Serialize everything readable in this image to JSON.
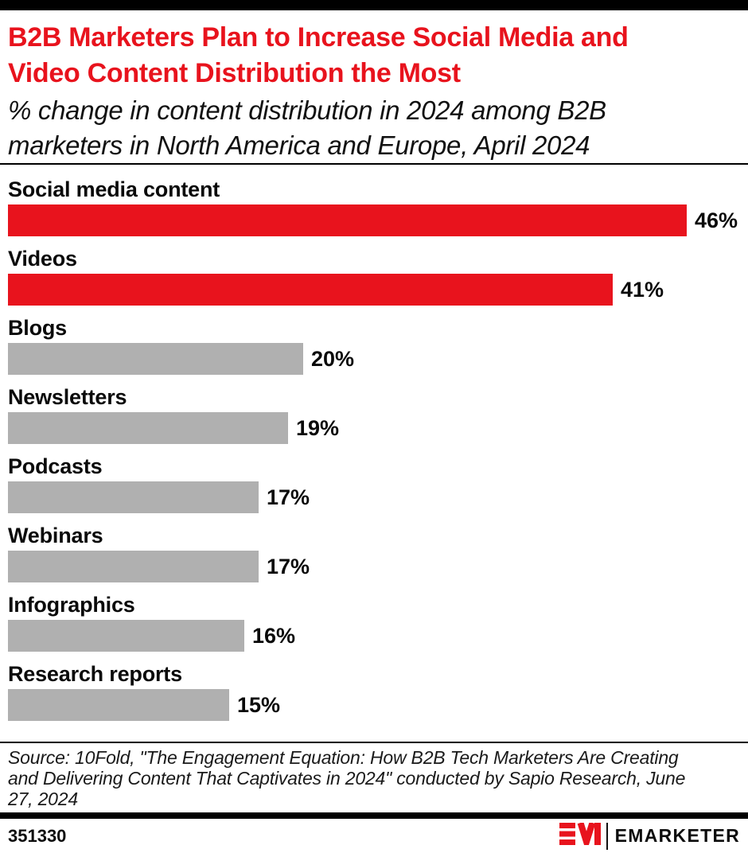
{
  "header": {
    "title_lines": [
      "B2B Marketers Plan to Increase Social Media and",
      "Video Content Distribution the Most"
    ],
    "subtitle_lines": [
      "% change in content distribution in 2024 among B2B",
      "marketers in North America and Europe, April 2024"
    ]
  },
  "chart_data": {
    "type": "bar",
    "orientation": "horizontal",
    "title": "B2B Marketers Plan to Increase Social Media and Video Content Distribution the Most",
    "subtitle": "% change in content distribution in 2024 among B2B marketers in North America and Europe, April 2024",
    "categories": [
      "Social media content",
      "Videos",
      "Blogs",
      "Newsletters",
      "Podcasts",
      "Webinars",
      "Infographics",
      "Research reports"
    ],
    "values": [
      46,
      41,
      20,
      19,
      17,
      17,
      16,
      15
    ],
    "value_labels": [
      "46%",
      "41%",
      "20%",
      "19%",
      "17%",
      "17%",
      "16%",
      "15%"
    ],
    "highlighted": [
      true,
      true,
      false,
      false,
      false,
      false,
      false,
      false
    ],
    "highlight_color": "#e8131d",
    "default_color": "#b0b0b0",
    "xlim": [
      0,
      50
    ],
    "grid": false,
    "legend": false,
    "xlabel": "",
    "ylabel": ""
  },
  "source": {
    "lines": [
      "Source: 10Fold, \"The Engagement Equation: How B2B Tech Marketers Are Creating",
      "and Delivering Content That Captivates in 2024\" conducted by Sapio Research, June",
      "27, 2024"
    ]
  },
  "footer": {
    "chart_id": "351330",
    "logo": {
      "monogram": "EM",
      "wordmark": "EMARKETER",
      "brand_red": "#e8131d"
    }
  }
}
